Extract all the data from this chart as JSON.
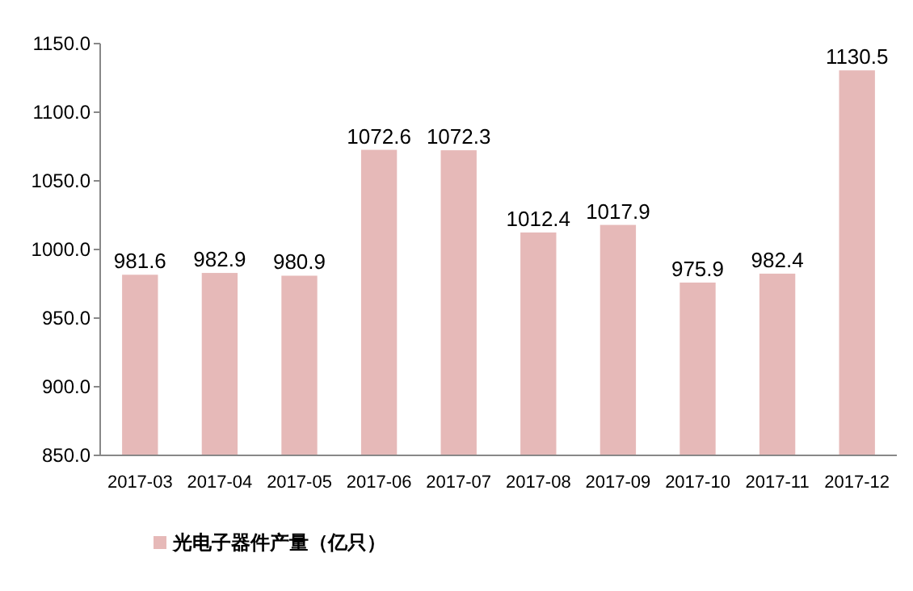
{
  "chart_data": {
    "type": "bar",
    "categories": [
      "2017-03",
      "2017-04",
      "2017-05",
      "2017-06",
      "2017-07",
      "2017-08",
      "2017-09",
      "2017-10",
      "2017-11",
      "2017-12"
    ],
    "series": [
      {
        "name": "光电子器件产量（亿只）",
        "color": "#e6b9b8",
        "values": [
          981.6,
          982.9,
          980.9,
          1072.6,
          1072.3,
          1012.4,
          1017.9,
          975.9,
          982.4,
          1130.5
        ]
      }
    ],
    "ylim": [
      850,
      1150
    ],
    "yticks": [
      {
        "value": 850,
        "label": "850.0"
      },
      {
        "value": 900,
        "label": "900.0"
      },
      {
        "value": 950,
        "label": "950.0"
      },
      {
        "value": 1000,
        "label": "1000.0"
      },
      {
        "value": 1050,
        "label": "1050.0"
      },
      {
        "value": 1100,
        "label": "1100.0"
      },
      {
        "value": 1150,
        "label": "1150.0"
      }
    ],
    "data_labels": true,
    "legend": "bottom"
  }
}
